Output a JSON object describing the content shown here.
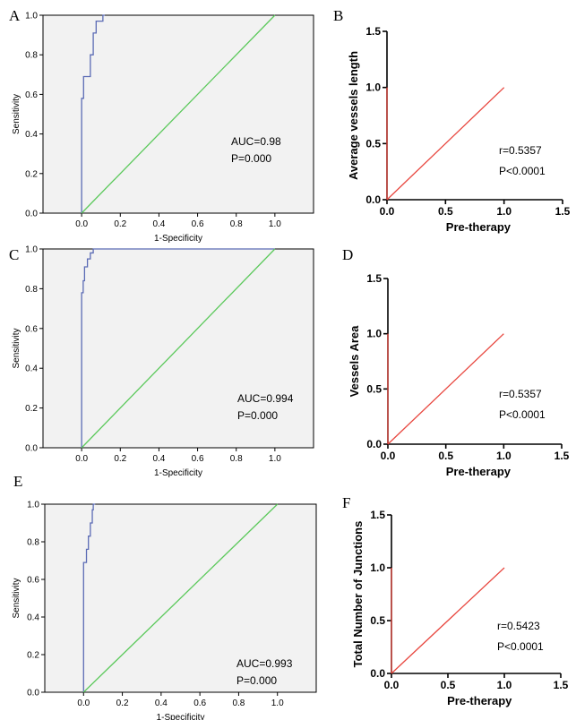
{
  "chart_data": [
    {
      "panel": "A",
      "type": "line",
      "xlabel": "1-Specificity",
      "ylabel": "Sensitivity",
      "xlim": [
        -0.2,
        1.2
      ],
      "ylim": [
        0,
        1
      ],
      "xticks": [
        "0.0",
        "0.2",
        "0.4",
        "0.6",
        "0.8",
        "1.0"
      ],
      "yticks": [
        "0.0",
        "0.2",
        "0.4",
        "0.6",
        "0.8",
        "1.0"
      ],
      "annotations": [
        "AUC=0.98",
        "P=0.000"
      ],
      "series": [
        {
          "color": "#5b6bb5",
          "x": [
            0,
            0,
            0.01,
            0.01,
            0.045,
            0.045,
            0.06,
            0.06,
            0.075,
            0.075,
            0.11,
            0.11,
            0.12
          ],
          "y": [
            0,
            0.58,
            0.58,
            0.69,
            0.69,
            0.8,
            0.8,
            0.91,
            0.91,
            0.97,
            0.97,
            1.0,
            1.0
          ]
        },
        {
          "color": "#5cc95c",
          "x": [
            0,
            1
          ],
          "y": [
            0,
            1
          ]
        }
      ]
    },
    {
      "panel": "B",
      "type": "line",
      "xlabel": "Pre-therapy",
      "ylabel": "Average vessels length",
      "xlim": [
        0,
        1.5
      ],
      "ylim": [
        0,
        1.5
      ],
      "xticks": [
        "0.0",
        "0.5",
        "1.0",
        "1.5"
      ],
      "yticks": [
        "0.0",
        "0.5",
        "1.0",
        "1.5"
      ],
      "annotations": [
        "r=0.5357",
        "P<0.0001"
      ],
      "series": [
        {
          "color": "#e8473f",
          "x": [
            0,
            1
          ],
          "y": [
            0,
            1
          ]
        },
        {
          "color": "#e8473f",
          "x": [
            0,
            0
          ],
          "y": [
            0,
            1
          ]
        }
      ]
    },
    {
      "panel": "C",
      "type": "line",
      "xlabel": "1-Specificity",
      "ylabel": "Sensitivity",
      "xlim": [
        -0.2,
        1.2
      ],
      "ylim": [
        0,
        1
      ],
      "xticks": [
        "0.0",
        "0.2",
        "0.4",
        "0.6",
        "0.8",
        "1.0"
      ],
      "yticks": [
        "0.0",
        "0.2",
        "0.4",
        "0.6",
        "0.8",
        "1.0"
      ],
      "annotations": [
        "AUC=0.994",
        "P=0.000"
      ],
      "series": [
        {
          "color": "#5b6bb5",
          "x": [
            0,
            0,
            0.008,
            0.008,
            0.015,
            0.015,
            0.03,
            0.03,
            0.045,
            0.045,
            0.06,
            0.06,
            1.0
          ],
          "y": [
            0,
            0.78,
            0.78,
            0.84,
            0.84,
            0.91,
            0.91,
            0.95,
            0.95,
            0.98,
            0.98,
            1.0,
            1.0
          ]
        },
        {
          "color": "#5cc95c",
          "x": [
            0,
            1
          ],
          "y": [
            0,
            1
          ]
        }
      ]
    },
    {
      "panel": "D",
      "type": "line",
      "xlabel": "Pre-therapy",
      "ylabel": "Vessels Area",
      "xlim": [
        0,
        1.5
      ],
      "ylim": [
        0,
        1.5
      ],
      "xticks": [
        "0.0",
        "0.5",
        "1.0",
        "1.5"
      ],
      "yticks": [
        "0.0",
        "0.5",
        "1.0",
        "1.5"
      ],
      "annotations": [
        "r=0.5357",
        "P<0.0001"
      ],
      "series": [
        {
          "color": "#e8473f",
          "x": [
            0,
            1
          ],
          "y": [
            0,
            1
          ]
        },
        {
          "color": "#e8473f",
          "x": [
            0,
            0
          ],
          "y": [
            0,
            1
          ]
        }
      ]
    },
    {
      "panel": "E",
      "type": "line",
      "xlabel": "1-Specificity",
      "ylabel": "Sensitivity",
      "xlim": [
        -0.2,
        1.2
      ],
      "ylim": [
        0,
        1
      ],
      "xticks": [
        "0.0",
        "0.2",
        "0.4",
        "0.6",
        "0.8",
        "1.0"
      ],
      "yticks": [
        "0.0",
        "0.2",
        "0.4",
        "0.6",
        "0.8",
        "1.0"
      ],
      "annotations": [
        "AUC=0.993",
        "P=0.000"
      ],
      "series": [
        {
          "color": "#5b6bb5",
          "x": [
            0,
            0,
            0.015,
            0.015,
            0.025,
            0.025,
            0.035,
            0.035,
            0.045,
            0.045,
            0.05,
            0.05,
            0.06
          ],
          "y": [
            0,
            0.69,
            0.69,
            0.76,
            0.76,
            0.83,
            0.83,
            0.9,
            0.9,
            0.97,
            0.97,
            1.0,
            1.0
          ]
        },
        {
          "color": "#5cc95c",
          "x": [
            0,
            1
          ],
          "y": [
            0,
            1
          ]
        }
      ]
    },
    {
      "panel": "F",
      "type": "line",
      "xlabel": "Pre-therapy",
      "ylabel": "Total Number of Junctions",
      "xlim": [
        0,
        1.5
      ],
      "ylim": [
        0,
        1.5
      ],
      "xticks": [
        "0.0",
        "0.5",
        "1.0",
        "1.5"
      ],
      "yticks": [
        "0.0",
        "0.5",
        "1.0",
        "1.5"
      ],
      "annotations": [
        "r=0.5423",
        "P<0.0001"
      ],
      "series": [
        {
          "color": "#e8473f",
          "x": [
            0,
            1
          ],
          "y": [
            0,
            1
          ]
        },
        {
          "color": "#e8473f",
          "x": [
            0,
            0
          ],
          "y": [
            0,
            1
          ]
        }
      ]
    }
  ]
}
